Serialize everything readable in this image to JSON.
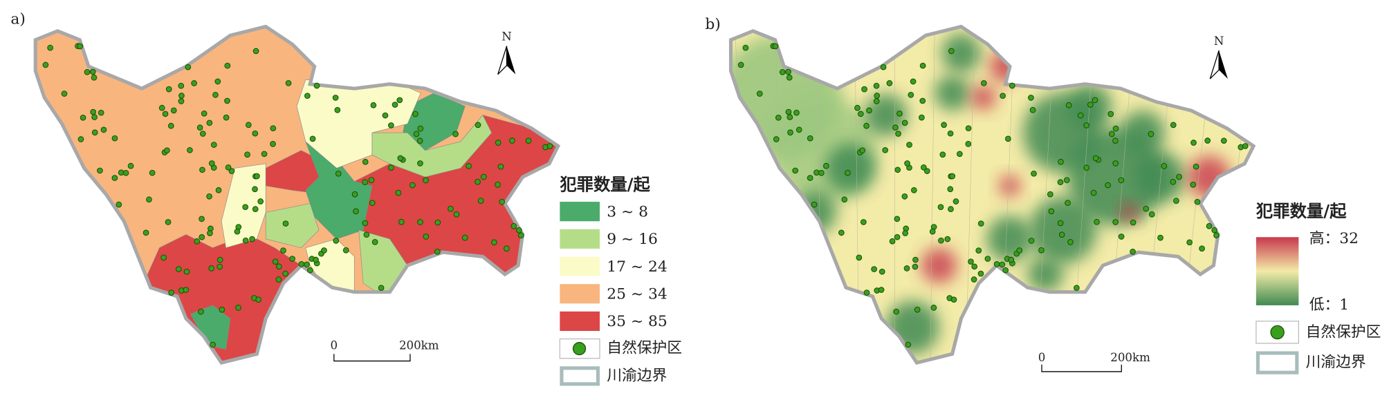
{
  "panels": [
    {
      "label": "a)",
      "north": "N",
      "legend": {
        "title": "犯罪数量/起",
        "classes": [
          {
            "label": "3 ~ 8",
            "color": "#4aab6b"
          },
          {
            "label": "9 ~ 16",
            "color": "#b5dd88"
          },
          {
            "label": "17 ~ 24",
            "color": "#fbfbc8"
          },
          {
            "label": "25 ~ 34",
            "color": "#f9b57e"
          },
          {
            "label": "35 ~ 85",
            "color": "#dc4646"
          }
        ],
        "reserve": "自然保护区",
        "boundary": "川渝边界"
      },
      "scale": {
        "start": "0",
        "end": "200km"
      }
    },
    {
      "label": "b)",
      "north": "N",
      "legend": {
        "title": "犯罪数量/起",
        "high": "高：32",
        "low": "低：1",
        "gradient": [
          "#c8384d",
          "#f3eba8",
          "#3f8a52"
        ],
        "reserve": "自然保护区",
        "boundary": "川渝边界"
      },
      "scale": {
        "start": "0",
        "end": "200km"
      }
    }
  ]
}
